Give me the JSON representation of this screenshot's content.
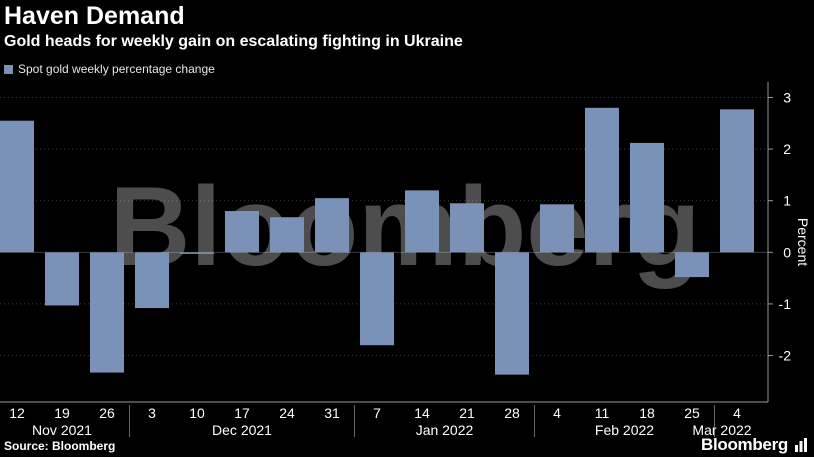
{
  "header": {
    "title": "Haven Demand",
    "subtitle": "Gold heads for weekly gain on escalating fighting in Ukraine"
  },
  "footer": {
    "source": "Source: Bloomberg",
    "brand": "Bloomberg"
  },
  "watermark": "Bloomberg",
  "colors": {
    "bar": "#7a92b8",
    "background": "#000000",
    "grid": "#3c3c3c"
  },
  "chart_data": {
    "type": "bar",
    "legend": {
      "position": "top-left",
      "entries": [
        "Spot gold weekly percentage change"
      ]
    },
    "series": [
      {
        "name": "Spot gold weekly percentage change",
        "values": [
          2.55,
          -1.03,
          -2.33,
          -1.08,
          -0.03,
          0.8,
          0.68,
          1.05,
          -1.8,
          1.2,
          0.95,
          -2.37,
          0.93,
          2.8,
          2.12,
          -0.48,
          2.77
        ]
      }
    ],
    "categories": [
      "12",
      "19",
      "26",
      "3",
      "10",
      "17",
      "24",
      "31",
      "7",
      "14",
      "21",
      "28",
      "4",
      "11",
      "18",
      "25",
      "4"
    ],
    "month_labels": [
      {
        "label": "Nov 2021",
        "index": 1
      },
      {
        "label": "Dec 2021",
        "index": 5
      },
      {
        "label": "Jan 2022",
        "index": 9.5
      },
      {
        "label": "Feb 2022",
        "index": 13.5
      },
      {
        "label": "Mar 2022",
        "index": 16
      }
    ],
    "month_separators": [
      2.5,
      7.5,
      11.5,
      15.5
    ],
    "ylabel": "Percent",
    "ylim": [
      -2.9,
      3.3
    ],
    "yticks": [
      -2,
      -1,
      0,
      1,
      2,
      3
    ],
    "ytick_labels": [
      "-2",
      "-1",
      "0",
      "1",
      "2",
      "3"
    ],
    "grid": true
  }
}
